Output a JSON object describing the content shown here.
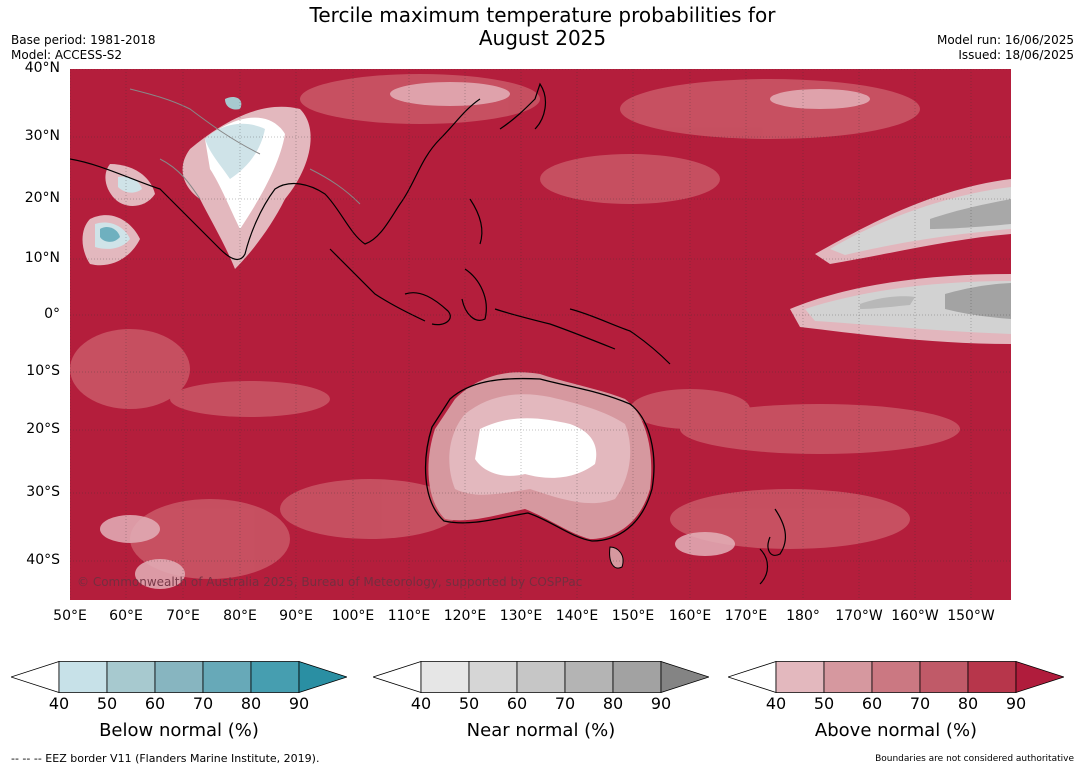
{
  "title_line1": "Tercile maximum temperature probabilities for",
  "title_line2": "August 2025",
  "base_period": "Base period: 1981-2018",
  "model": "Model: ACCESS-S2",
  "model_run": "Model run: 16/06/2025",
  "issued": "Issued: 18/06/2025",
  "credit": "© Commonwealth of Australia 2025, Bureau of Meteorology, supported by COSPPac",
  "lat_labels": [
    "40°N",
    "30°N",
    "20°N",
    "10°N",
    "0°",
    "10°S",
    "20°S",
    "30°S",
    "40°S"
  ],
  "lon_labels": [
    "50°E",
    "60°E",
    "70°E",
    "80°E",
    "90°E",
    "100°E",
    "110°E",
    "120°E",
    "130°E",
    "140°E",
    "150°E",
    "160°E",
    "170°E",
    "180°",
    "170°W",
    "160°W",
    "150°W"
  ],
  "colorbars": [
    {
      "label": "Below normal (%)",
      "ticks": [
        "40",
        "50",
        "60",
        "70",
        "80",
        "90"
      ],
      "colors": [
        "#ffffff",
        "#c7e1e8",
        "#a7c9cf",
        "#87b5c0",
        "#67a9b8",
        "#469eb0",
        "#2a8fa3"
      ]
    },
    {
      "label": "Near normal (%)",
      "ticks": [
        "40",
        "50",
        "60",
        "70",
        "80",
        "90"
      ],
      "colors": [
        "#ffffff",
        "#e6e6e6",
        "#d6d6d6",
        "#c6c6c6",
        "#b4b4b4",
        "#a2a2a2",
        "#848484"
      ]
    },
    {
      "label": "Above normal (%)",
      "ticks": [
        "40",
        "50",
        "60",
        "70",
        "80",
        "90"
      ],
      "colors": [
        "#ffffff",
        "#e3b8be",
        "#d6989f",
        "#cb7882",
        "#c05a68",
        "#b7364b",
        "#b01c3c"
      ]
    }
  ],
  "footer_left": "--  --  -- EEZ border V11 (Flanders Marine Institute, 2019).",
  "footer_right": "Boundaries are not considered authoritative",
  "map_colors": {
    "base": "#b41e3c",
    "ocean_mid": "#c55060",
    "light_pink": "#e2aeb6",
    "pink": "#d48690",
    "white": "#ffffff",
    "grey": "#c6c6c6",
    "grey_dark": "#a6a6a6",
    "blue_light": "#cfe3e8",
    "blue": "#6fb0bf"
  }
}
